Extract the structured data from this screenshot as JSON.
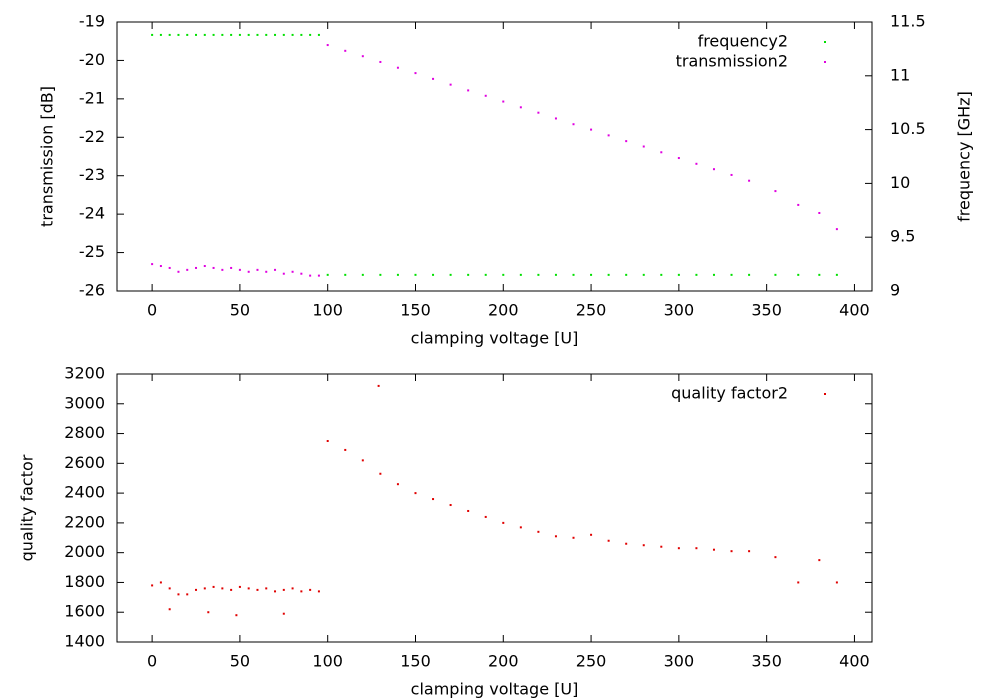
{
  "chart_data": [
    {
      "type": "scatter",
      "xlabel": "clamping voltage [U]",
      "ylabel": "transmission [dB]",
      "y2label": "frequency [GHz]",
      "xlim": [
        -20,
        410
      ],
      "xticks": [
        0,
        50,
        100,
        150,
        200,
        250,
        300,
        350,
        400
      ],
      "ylim": [
        -26,
        -19
      ],
      "yticks": [
        -26,
        -25,
        -24,
        -23,
        -22,
        -21,
        -20,
        -19
      ],
      "y2lim": [
        9,
        11.5
      ],
      "y2ticks": [
        9,
        9.5,
        10,
        10.5,
        11,
        11.5
      ],
      "legend": "top-right",
      "grid": false,
      "series": [
        {
          "name": "frequency2",
          "color": "#00e000",
          "axis": "y2",
          "x": [
            0,
            5,
            10,
            15,
            20,
            25,
            30,
            35,
            40,
            45,
            50,
            55,
            60,
            65,
            70,
            75,
            80,
            85,
            90,
            95,
            100,
            110,
            120,
            130,
            140,
            150,
            160,
            170,
            180,
            190,
            200,
            210,
            220,
            230,
            240,
            250,
            260,
            270,
            280,
            290,
            300,
            310,
            320,
            330,
            340,
            355,
            368,
            380,
            390
          ],
          "values": [
            11.38,
            11.38,
            11.38,
            11.38,
            11.38,
            11.38,
            11.38,
            11.38,
            11.38,
            11.38,
            11.38,
            11.38,
            11.38,
            11.38,
            11.38,
            11.38,
            11.38,
            11.38,
            11.38,
            11.38,
            9.15,
            9.15,
            9.15,
            9.15,
            9.15,
            9.15,
            9.15,
            9.15,
            9.15,
            9.15,
            9.15,
            9.15,
            9.15,
            9.15,
            9.15,
            9.15,
            9.15,
            9.15,
            9.15,
            9.15,
            9.15,
            9.15,
            9.15,
            9.15,
            9.15,
            9.15,
            9.15,
            9.15,
            9.15
          ]
        },
        {
          "name": "transmission2",
          "color": "#e000e0",
          "x": [
            0,
            5,
            10,
            15,
            20,
            25,
            30,
            35,
            40,
            45,
            50,
            55,
            60,
            65,
            70,
            75,
            80,
            85,
            90,
            95,
            100,
            110,
            120,
            130,
            140,
            150,
            160,
            170,
            180,
            190,
            200,
            210,
            220,
            230,
            240,
            250,
            260,
            270,
            280,
            290,
            300,
            310,
            320,
            330,
            340,
            355,
            368,
            380,
            390
          ],
          "values": [
            -25.3,
            -25.35,
            -25.4,
            -25.5,
            -25.45,
            -25.4,
            -25.35,
            -25.4,
            -25.45,
            -25.4,
            -25.45,
            -25.5,
            -25.45,
            -25.5,
            -25.45,
            -25.55,
            -25.5,
            -25.55,
            -25.6,
            -25.6,
            -19.6,
            -19.75,
            -19.89,
            -20.04,
            -20.19,
            -20.33,
            -20.48,
            -20.63,
            -20.78,
            -20.92,
            -21.07,
            -21.22,
            -21.36,
            -21.51,
            -21.66,
            -21.8,
            -21.95,
            -22.1,
            -22.24,
            -22.39,
            -22.54,
            -22.69,
            -22.83,
            -22.98,
            -23.13,
            -23.4,
            -23.76,
            -23.97,
            -24.39
          ]
        }
      ]
    },
    {
      "type": "scatter",
      "xlabel": "clamping voltage [U]",
      "ylabel": "quality factor",
      "xlim": [
        -20,
        410
      ],
      "xticks": [
        0,
        50,
        100,
        150,
        200,
        250,
        300,
        350,
        400
      ],
      "ylim": [
        1400,
        3200
      ],
      "yticks": [
        1400,
        1600,
        1800,
        2000,
        2200,
        2400,
        2600,
        2800,
        3000,
        3200
      ],
      "legend": "top-right",
      "grid": false,
      "series": [
        {
          "name": "quality factor2",
          "color": "#e00000",
          "x": [
            0,
            5,
            10,
            15,
            20,
            25,
            30,
            35,
            40,
            45,
            50,
            55,
            60,
            65,
            70,
            75,
            80,
            85,
            90,
            95,
            10,
            32,
            48,
            75,
            100,
            110,
            120,
            129,
            130,
            140,
            150,
            160,
            170,
            180,
            190,
            200,
            210,
            220,
            230,
            240,
            250,
            260,
            270,
            280,
            290,
            300,
            310,
            320,
            330,
            340,
            355,
            368,
            380,
            390
          ],
          "values": [
            1780,
            1800,
            1760,
            1720,
            1720,
            1750,
            1760,
            1770,
            1760,
            1750,
            1770,
            1760,
            1750,
            1760,
            1740,
            1750,
            1760,
            1740,
            1750,
            1740,
            1620,
            1600,
            1580,
            1590,
            2750,
            2690,
            2620,
            3120,
            2530,
            2460,
            2400,
            2360,
            2320,
            2280,
            2240,
            2200,
            2170,
            2140,
            2110,
            2100,
            2120,
            2080,
            2060,
            2050,
            2040,
            2030,
            2030,
            2020,
            2010,
            2010,
            1970,
            1800,
            1950,
            1800
          ]
        }
      ]
    }
  ]
}
